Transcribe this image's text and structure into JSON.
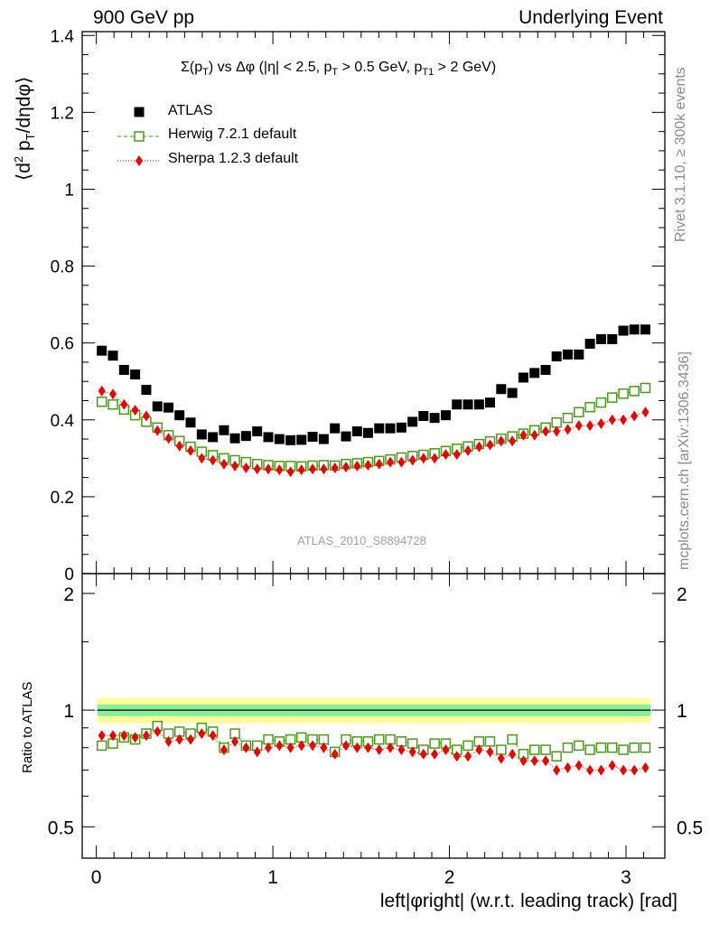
{
  "header": {
    "left": "900 GeV pp",
    "right": "Underlying Event"
  },
  "side_labels": {
    "rivet": "Rivet 3.1.10, ≥ 300k events",
    "mcplots": "mcplots.cern.ch [arXiv:1306.3436]"
  },
  "analysis_tag": "ATLAS_2010_S8894728",
  "colors": {
    "data": "#000000",
    "herwig": "#4a9a1a",
    "sherpa": "#ee0000",
    "band_outer": "#ffff99",
    "band_inner": "#88ee99"
  },
  "chart_data": [
    {
      "type": "scatter",
      "title": "Σ(p_T) vs Δφ (|η| < 2.5, p_T > 0.5 GeV, p_T1 > 2 GeV)",
      "title_parts": {
        "p1": "Σ(p",
        "s1": "T",
        "p2": ") vs Δφ (|η| < 2.5, p",
        "s2": "T",
        "p3": " > 0.5 GeV, p",
        "s3": "T1",
        "p4": " > 2 GeV)"
      },
      "ylabel": "⟨d² p_T/dηdφ⟩",
      "ylabel_parts": {
        "a": "⟨d",
        "sup": "2",
        "b": " p",
        "sub": "T",
        "c": "/dηdφ⟩"
      },
      "xlabel": "left|φright| (w.r.t. leading track) [rad]",
      "xlim": [
        -0.08,
        3.22
      ],
      "ylim": [
        0,
        1.41
      ],
      "y_ticks": [
        0,
        0.2,
        0.4,
        0.6,
        0.8,
        1,
        1.2,
        1.4
      ],
      "y_tick_labels": [
        "0",
        "0.2",
        "0.4",
        "0.6",
        "0.8",
        "1",
        "1.2",
        "1.4"
      ],
      "x": [
        0.031,
        0.094,
        0.157,
        0.22,
        0.283,
        0.346,
        0.409,
        0.471,
        0.534,
        0.597,
        0.66,
        0.723,
        0.785,
        0.848,
        0.911,
        0.974,
        1.037,
        1.1,
        1.162,
        1.225,
        1.288,
        1.351,
        1.414,
        1.477,
        1.539,
        1.602,
        1.665,
        1.728,
        1.791,
        1.853,
        1.916,
        1.979,
        2.042,
        2.105,
        2.168,
        2.23,
        2.293,
        2.356,
        2.419,
        2.482,
        2.545,
        2.607,
        2.67,
        2.733,
        2.796,
        2.859,
        2.922,
        2.985,
        3.047,
        3.11
      ],
      "legend": [
        {
          "name": "ATLAS",
          "marker": "square-filled"
        },
        {
          "name": "Herwig 7.2.1 default",
          "marker": "square-open"
        },
        {
          "name": "Sherpa 1.2.3 default",
          "marker": "diamond"
        }
      ],
      "series": [
        {
          "name": "ATLAS",
          "values": [
            0.58,
            0.567,
            0.53,
            0.518,
            0.478,
            0.435,
            0.432,
            0.412,
            0.393,
            0.362,
            0.355,
            0.373,
            0.352,
            0.358,
            0.37,
            0.355,
            0.35,
            0.347,
            0.348,
            0.356,
            0.35,
            0.378,
            0.357,
            0.37,
            0.366,
            0.378,
            0.378,
            0.38,
            0.395,
            0.41,
            0.405,
            0.412,
            0.44,
            0.44,
            0.44,
            0.445,
            0.48,
            0.47,
            0.51,
            0.522,
            0.53,
            0.565,
            0.57,
            0.57,
            0.598,
            0.61,
            0.61,
            0.632,
            0.635,
            0.635
          ]
        },
        {
          "name": "Herwig 7.2.1 default",
          "values": [
            0.447,
            0.44,
            0.427,
            0.412,
            0.395,
            0.38,
            0.36,
            0.345,
            0.33,
            0.317,
            0.308,
            0.3,
            0.295,
            0.29,
            0.285,
            0.282,
            0.28,
            0.28,
            0.279,
            0.281,
            0.282,
            0.281,
            0.285,
            0.287,
            0.29,
            0.293,
            0.297,
            0.302,
            0.306,
            0.309,
            0.313,
            0.319,
            0.325,
            0.331,
            0.337,
            0.344,
            0.351,
            0.357,
            0.364,
            0.373,
            0.38,
            0.393,
            0.405,
            0.42,
            0.433,
            0.445,
            0.458,
            0.468,
            0.475,
            0.483
          ]
        },
        {
          "name": "Sherpa 1.2.3 default",
          "values": [
            0.475,
            0.467,
            0.44,
            0.425,
            0.41,
            0.372,
            0.352,
            0.332,
            0.32,
            0.3,
            0.295,
            0.285,
            0.28,
            0.275,
            0.272,
            0.272,
            0.27,
            0.265,
            0.27,
            0.272,
            0.272,
            0.275,
            0.277,
            0.28,
            0.282,
            0.285,
            0.29,
            0.29,
            0.295,
            0.3,
            0.3,
            0.31,
            0.31,
            0.32,
            0.33,
            0.335,
            0.345,
            0.345,
            0.36,
            0.36,
            0.37,
            0.37,
            0.375,
            0.385,
            0.385,
            0.39,
            0.4,
            0.4,
            0.41,
            0.42
          ]
        }
      ]
    },
    {
      "type": "scatter",
      "title": "",
      "ylabel": "Ratio to ATLAS",
      "xlabel": "left|φright| (w.r.t. leading track) [rad]",
      "xlim": [
        -0.08,
        3.22
      ],
      "ylim": [
        0.415,
        2.25
      ],
      "y_ticks": [
        0.5,
        1,
        2
      ],
      "y_tick_labels": [
        "0.5",
        "1",
        "2"
      ],
      "x_ticks": [
        0,
        1,
        2,
        3
      ],
      "x_tick_labels": [
        "0",
        "1",
        "2",
        "3"
      ],
      "reference_line": 1,
      "data_uncertainty_band": {
        "inner": [
          0.965,
          1.035
        ],
        "outer": [
          0.925,
          1.075
        ]
      },
      "series": [
        {
          "name": "Herwig 7.2.1 default",
          "values": [
            0.81,
            0.82,
            0.85,
            0.84,
            0.87,
            0.91,
            0.87,
            0.88,
            0.87,
            0.9,
            0.88,
            0.8,
            0.87,
            0.81,
            0.81,
            0.84,
            0.83,
            0.84,
            0.85,
            0.84,
            0.84,
            0.78,
            0.84,
            0.83,
            0.83,
            0.84,
            0.84,
            0.83,
            0.82,
            0.79,
            0.82,
            0.82,
            0.79,
            0.81,
            0.83,
            0.83,
            0.79,
            0.84,
            0.77,
            0.79,
            0.79,
            0.76,
            0.8,
            0.81,
            0.79,
            0.8,
            0.8,
            0.79,
            0.8,
            0.8
          ]
        },
        {
          "name": "Sherpa 1.2.3 default",
          "values": [
            0.86,
            0.86,
            0.86,
            0.85,
            0.86,
            0.88,
            0.83,
            0.84,
            0.84,
            0.87,
            0.86,
            0.79,
            0.83,
            0.8,
            0.78,
            0.8,
            0.81,
            0.8,
            0.81,
            0.81,
            0.8,
            0.77,
            0.81,
            0.8,
            0.8,
            0.79,
            0.8,
            0.79,
            0.78,
            0.77,
            0.77,
            0.79,
            0.76,
            0.76,
            0.79,
            0.78,
            0.75,
            0.77,
            0.74,
            0.74,
            0.74,
            0.7,
            0.71,
            0.72,
            0.7,
            0.7,
            0.72,
            0.7,
            0.7,
            0.71
          ]
        }
      ]
    }
  ]
}
